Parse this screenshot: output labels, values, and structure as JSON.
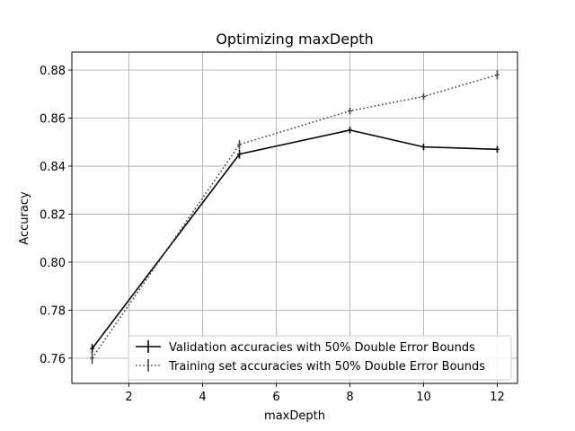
{
  "chart_data": {
    "type": "line",
    "title": "Optimizing maxDepth",
    "xlabel": "maxDepth",
    "ylabel": "Accuracy",
    "xlim": [
      0.45,
      12.55
    ],
    "ylim": [
      0.7495,
      0.8875
    ],
    "xticks": [
      2,
      4,
      6,
      8,
      10,
      12
    ],
    "yticks": [
      0.76,
      0.78,
      0.8,
      0.82,
      0.84,
      0.86,
      0.88
    ],
    "ytick_labels": [
      "0.76",
      "0.78",
      "0.80",
      "0.82",
      "0.84",
      "0.86",
      "0.88"
    ],
    "grid": true,
    "legend_position": "lower-right",
    "series": [
      {
        "name": "Validation accuracies with 50% Double Error Bounds",
        "style": "solid",
        "color": "#000000",
        "x": [
          1,
          5,
          8,
          10,
          12
        ],
        "y": [
          0.764,
          0.845,
          0.855,
          0.848,
          0.847
        ],
        "err": [
          0.0015,
          0.0015,
          0.001,
          0.001,
          0.001
        ]
      },
      {
        "name": "Training set accuracies with 50% Double Error Bounds",
        "style": "dotted",
        "color": "#444444",
        "x": [
          1,
          5,
          8,
          10,
          12
        ],
        "y": [
          0.76,
          0.849,
          0.863,
          0.869,
          0.878
        ],
        "err": [
          0.002,
          0.0015,
          0.001,
          0.001,
          0.0015
        ]
      }
    ]
  }
}
